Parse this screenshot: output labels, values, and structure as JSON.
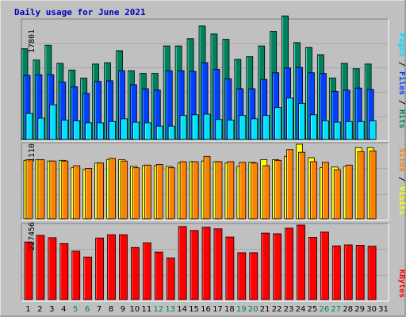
{
  "title": "Daily usage for June 2021",
  "colors": {
    "background": "#c0c0c0",
    "title": "#0000c0",
    "hits": "#00805c",
    "files": "#0040ff",
    "pages": "#00e0ff",
    "visits": "#ffff00",
    "sites": "#ff8000",
    "kbytes": "#ff0000",
    "weekend": "#00805c",
    "weekday": "#000000"
  },
  "chart_data": [
    {
      "type": "bar",
      "name": "hits-files-pages",
      "ylabel_parts": [
        "Pages",
        "Files",
        "Hits"
      ],
      "ymax_label": "17801",
      "ylim": [
        0,
        17801
      ],
      "categories": [
        "1",
        "2",
        "3",
        "4",
        "5",
        "6",
        "7",
        "8",
        "9",
        "10",
        "11",
        "12",
        "13",
        "14",
        "15",
        "16",
        "17",
        "18",
        "19",
        "20",
        "21",
        "22",
        "23",
        "24",
        "25",
        "26",
        "27",
        "28",
        "29",
        "30",
        "31"
      ],
      "series": [
        {
          "name": "Hits",
          "values": [
            13600,
            11900,
            14100,
            11400,
            10400,
            9200,
            11300,
            11500,
            13300,
            10300,
            9900,
            9900,
            14000,
            14000,
            15100,
            17000,
            15800,
            15000,
            12000,
            12400,
            14000,
            16200,
            18500,
            14500,
            13800,
            12700,
            9200,
            11400,
            10600,
            11300,
            null
          ]
        },
        {
          "name": "Files",
          "values": [
            9600,
            9700,
            9700,
            8600,
            7900,
            6900,
            8700,
            8800,
            10300,
            8200,
            7600,
            7400,
            10300,
            10300,
            10200,
            11500,
            10500,
            9100,
            7600,
            7600,
            9000,
            10000,
            10700,
            10800,
            10000,
            9900,
            7200,
            7400,
            7700,
            7500,
            null
          ]
        },
        {
          "name": "Pages",
          "values": [
            3900,
            3200,
            5200,
            2900,
            2800,
            2500,
            2500,
            2700,
            3100,
            2600,
            2500,
            2000,
            2000,
            3600,
            3700,
            3800,
            3000,
            2900,
            3600,
            3100,
            3600,
            4800,
            6200,
            5400,
            3700,
            2800,
            2600,
            2700,
            2700,
            2800,
            null
          ]
        }
      ]
    },
    {
      "type": "bar",
      "name": "visits-sites",
      "ylabel_parts": [
        "Sites",
        "Visits"
      ],
      "ymax_label": "1110",
      "ylim": [
        0,
        1110
      ],
      "categories": [
        "1",
        "2",
        "3",
        "4",
        "5",
        "6",
        "7",
        "8",
        "9",
        "10",
        "11",
        "12",
        "13",
        "14",
        "15",
        "16",
        "17",
        "18",
        "19",
        "20",
        "21",
        "22",
        "23",
        "24",
        "25",
        "26",
        "27",
        "28",
        "29",
        "30",
        "31"
      ],
      "series": [
        {
          "name": "Visits",
          "values": [
            870,
            880,
            860,
            870,
            760,
            730,
            830,
            880,
            880,
            780,
            790,
            790,
            780,
            830,
            850,
            860,
            850,
            830,
            780,
            840,
            880,
            880,
            930,
            1110,
            910,
            760,
            770,
            780,
            1060,
            1060,
            null
          ]
        },
        {
          "name": "Sites",
          "values": [
            880,
            880,
            860,
            860,
            790,
            750,
            830,
            900,
            860,
            760,
            800,
            810,
            760,
            850,
            850,
            930,
            850,
            850,
            840,
            830,
            790,
            870,
            1030,
            990,
            850,
            840,
            730,
            800,
            1000,
            1010,
            null
          ]
        }
      ]
    },
    {
      "type": "bar",
      "name": "kbytes",
      "ylabel_parts": [
        "KBytes"
      ],
      "ymax_label": "227456",
      "ylim": [
        0,
        227456
      ],
      "categories": [
        "1",
        "2",
        "3",
        "4",
        "5",
        "6",
        "7",
        "8",
        "9",
        "10",
        "11",
        "12",
        "13",
        "14",
        "15",
        "16",
        "17",
        "18",
        "19",
        "20",
        "21",
        "22",
        "23",
        "24",
        "25",
        "26",
        "27",
        "28",
        "29",
        "30",
        "31"
      ],
      "series": [
        {
          "name": "KBytes",
          "values": [
            176000,
            196000,
            189000,
            171000,
            148000,
            130000,
            188000,
            198000,
            198000,
            159000,
            173000,
            145000,
            127000,
            223000,
            211000,
            221000,
            216000,
            191000,
            143000,
            143000,
            203000,
            201000,
            218000,
            233000,
            190000,
            206000,
            164000,
            167000,
            166000,
            163000,
            null
          ]
        }
      ]
    }
  ],
  "x_labels": [
    "1",
    "2",
    "3",
    "4",
    "5",
    "6",
    "7",
    "8",
    "9",
    "10",
    "11",
    "12",
    "13",
    "14",
    "15",
    "16",
    "17",
    "18",
    "19",
    "20",
    "21",
    "22",
    "23",
    "24",
    "25",
    "26",
    "27",
    "28",
    "29",
    "30",
    "31"
  ],
  "weekend_days": [
    5,
    6,
    12,
    13,
    19,
    20,
    26,
    27
  ]
}
